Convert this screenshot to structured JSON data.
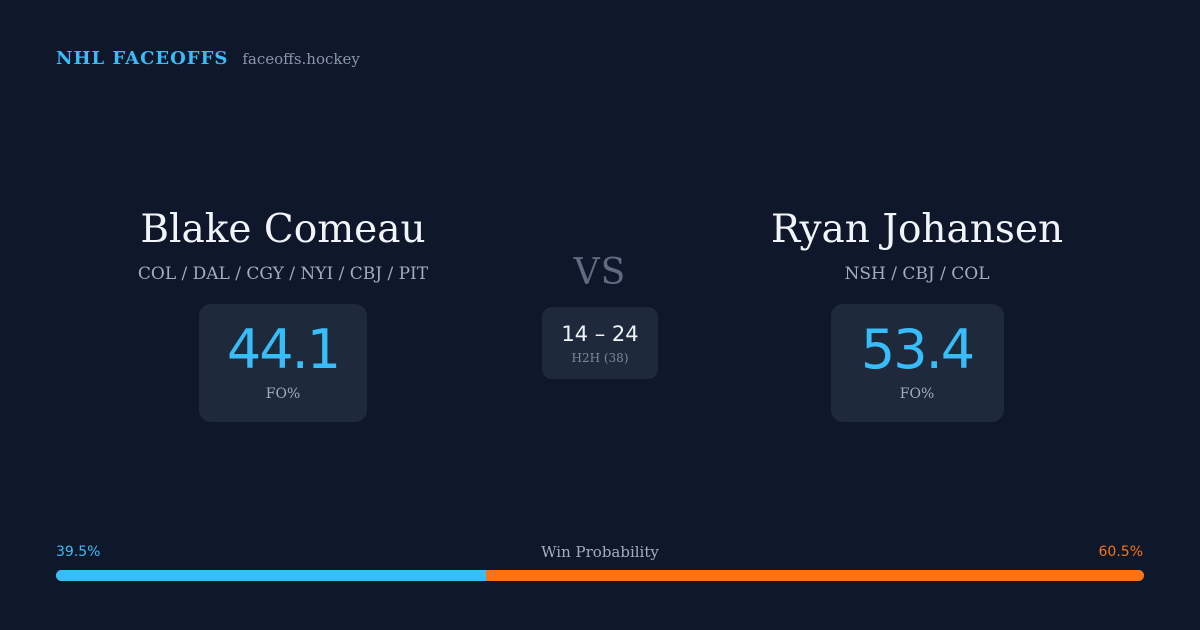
{
  "brand": {
    "name": "NHL FACEOFFS",
    "domain": "faceoffs.hockey"
  },
  "player1": {
    "name": "Blake Comeau",
    "teams": "COL / DAL / CGY / NYI / CBJ / PIT",
    "fo_pct": "44.1",
    "fo_label": "FO%"
  },
  "vs_label": "VS",
  "h2h": {
    "score": "14 – 24",
    "label": "H2H (38)"
  },
  "player2": {
    "name": "Ryan Johansen",
    "teams": "NSH / CBJ / COL",
    "fo_pct": "53.4",
    "fo_label": "FO%"
  },
  "win_probability": {
    "title": "Win Probability",
    "left_text": "39.5%",
    "right_text": "60.5%",
    "left_value": 39.5,
    "right_value": 60.5,
    "left_color": "#38bdf8",
    "right_color": "#f97316"
  },
  "colors": {
    "background": "#0f172a",
    "card": "#1e293b",
    "accent_blue": "#38bdf8",
    "accent_orange": "#f97316"
  }
}
